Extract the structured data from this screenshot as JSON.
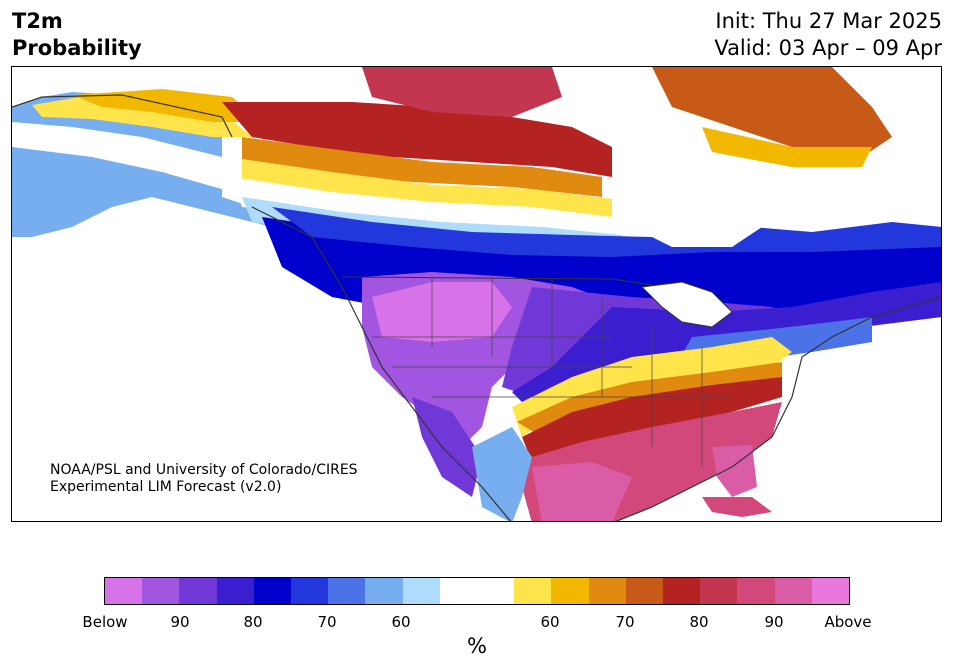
{
  "header": {
    "title_line1": "T2m",
    "title_line2": "Probability",
    "init": "Init: Thu 27 Mar 2025",
    "valid": "Valid: 03 Apr – 09 Apr"
  },
  "map": {
    "credit_line1": "NOAA/PSL and University of Colorado/CIRES",
    "credit_line2": "Experimental LIM Forecast (v2.0)"
  },
  "colorbar": {
    "colors": [
      "#d872e8",
      "#a255e0",
      "#7038d6",
      "#3a1ed0",
      "#0000cc",
      "#2238dc",
      "#4b72e6",
      "#77aef0",
      "#aedcfa",
      "#ffffff",
      "#ffffff",
      "#ffe44c",
      "#f2b800",
      "#e08a10",
      "#c85a18",
      "#b42222",
      "#c23650",
      "#d2487a",
      "#da5ca6",
      "#e878dc"
    ],
    "ticks": [
      "Below",
      "90",
      "80",
      "70",
      "60",
      "60",
      "70",
      "80",
      "90",
      "Above"
    ],
    "unit": "%"
  }
}
